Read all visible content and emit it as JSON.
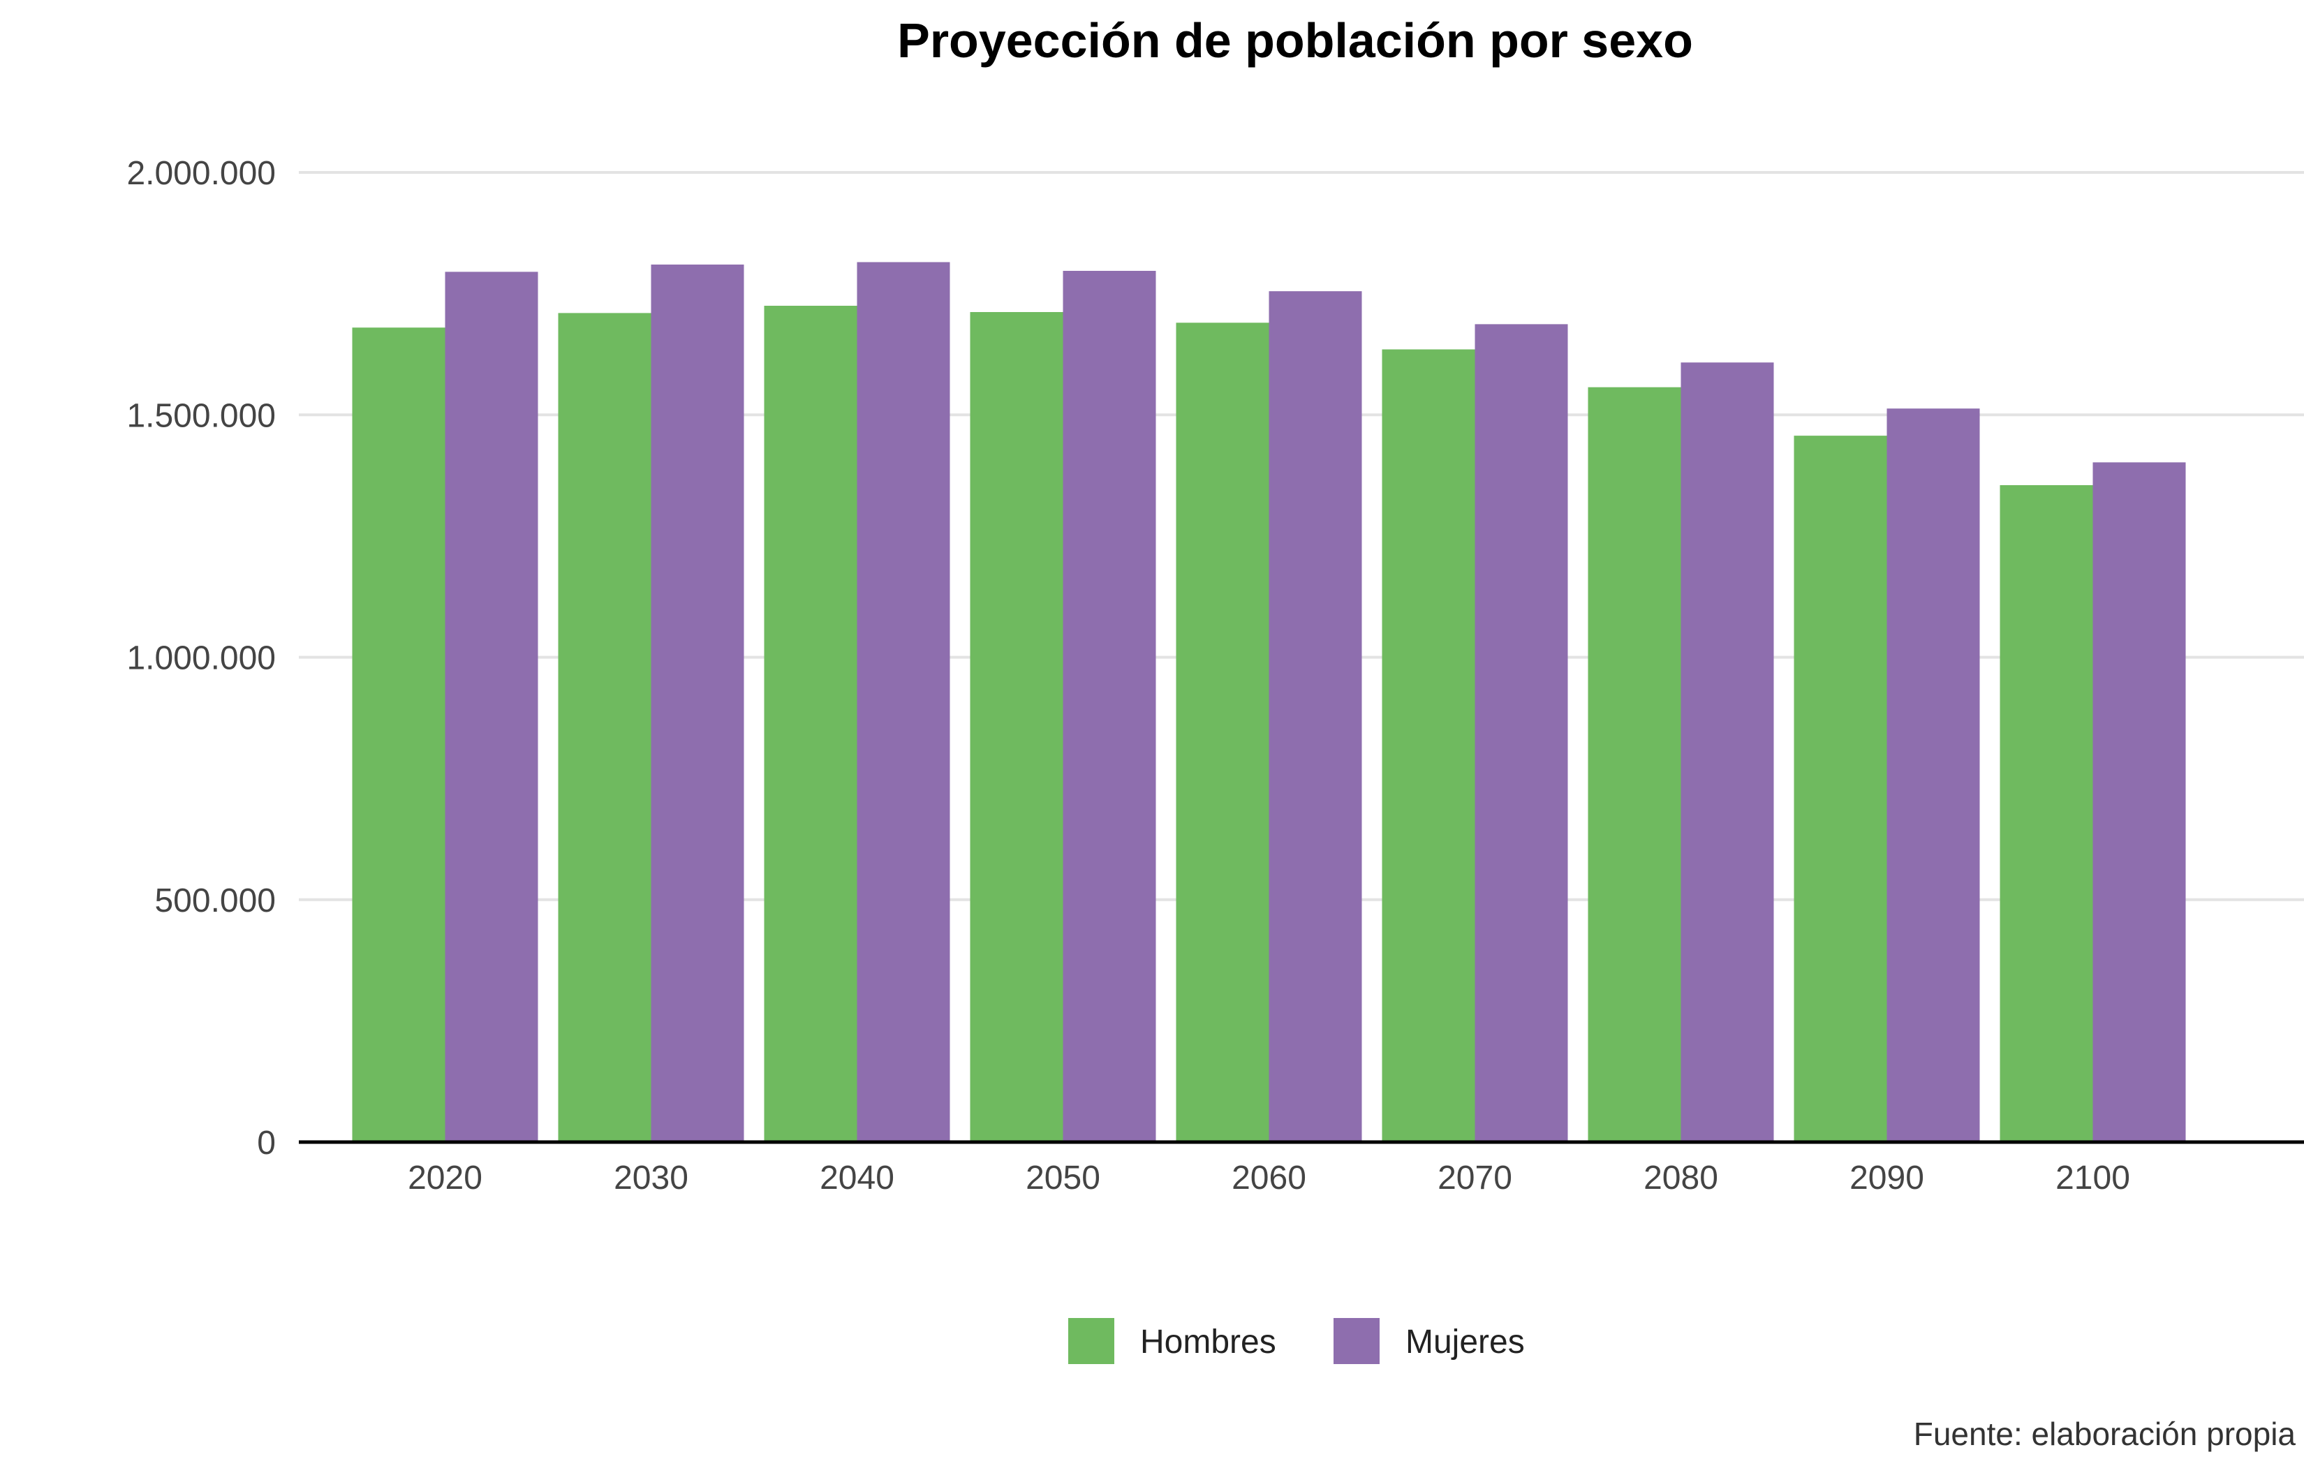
{
  "chart_data": {
    "type": "bar",
    "title": "Proyección de población por sexo",
    "xlabel": "",
    "ylabel": "",
    "categories": [
      "2020",
      "2030",
      "2040",
      "2050",
      "2060",
      "2070",
      "2080",
      "2090",
      "2100"
    ],
    "series": [
      {
        "name": "Hombres",
        "color": "#6fba5f",
        "values": [
          1680000,
          1710000,
          1725000,
          1712000,
          1690000,
          1635000,
          1557000,
          1457000,
          1355000
        ]
      },
      {
        "name": "Mujeres",
        "color": "#8e6eae",
        "values": [
          1795000,
          1810000,
          1815000,
          1797000,
          1755000,
          1687000,
          1608000,
          1513000,
          1402000
        ]
      }
    ],
    "ylim": [
      0,
      2000000
    ],
    "yticks": [
      0,
      500000,
      1000000,
      1500000,
      2000000
    ],
    "ytick_labels": [
      "0",
      "500.000",
      "1.000.000",
      "1.500.000",
      "2.000.000"
    ],
    "grid": true,
    "legend_position": "bottom",
    "caption": "Fuente: elaboración propia"
  }
}
